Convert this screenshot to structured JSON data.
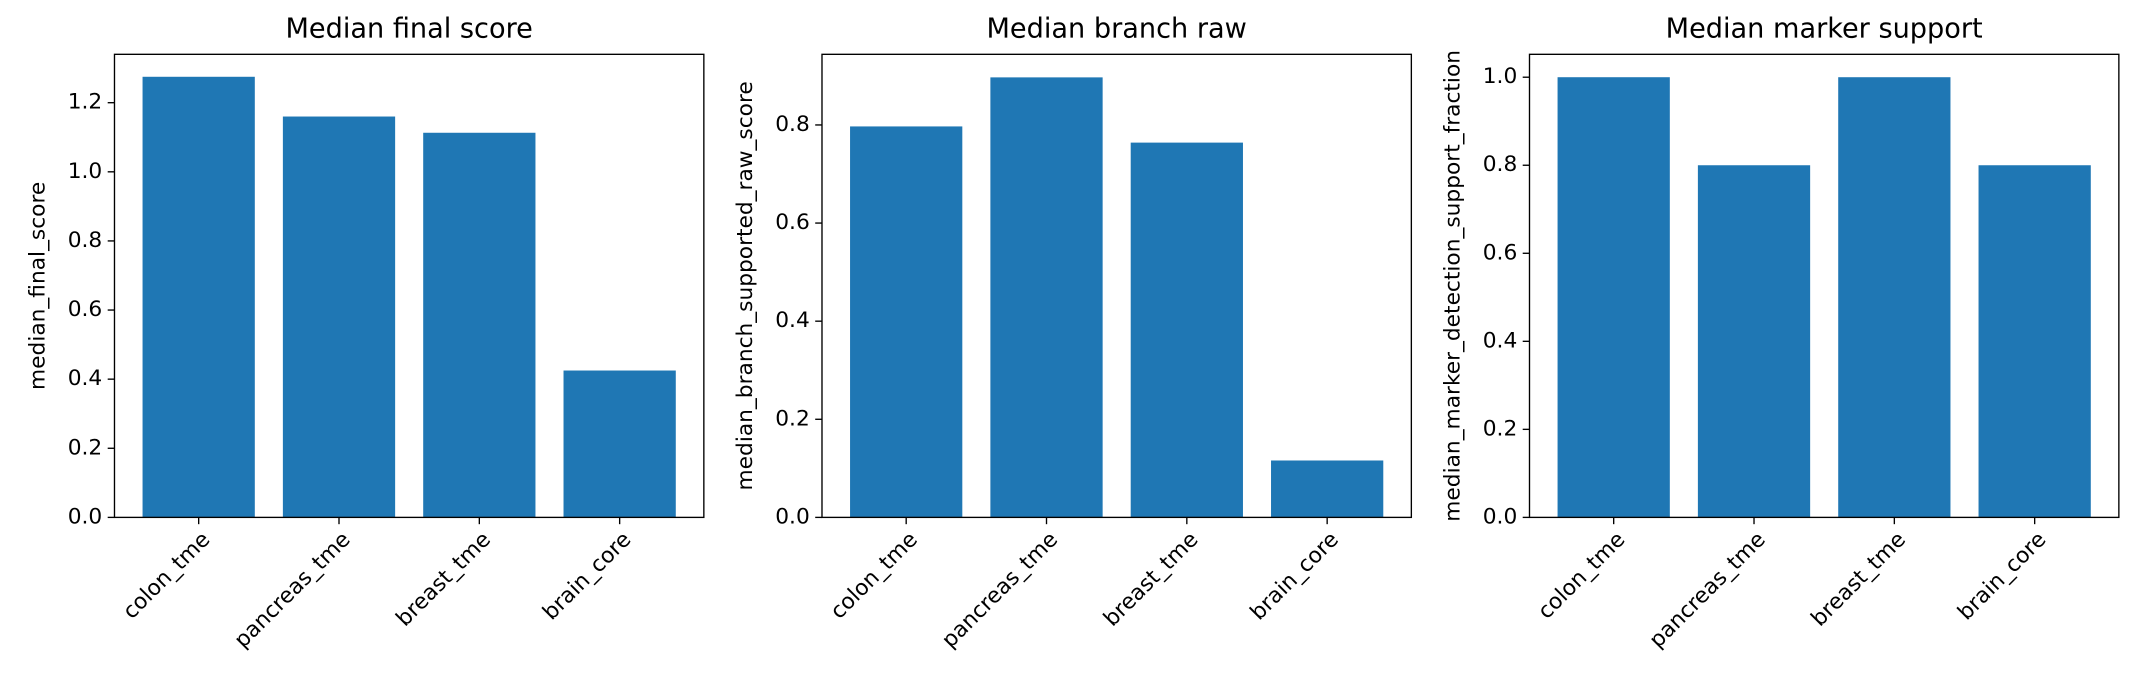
{
  "chart_data": [
    {
      "type": "bar",
      "title": "Median final score",
      "y_label": "median_final_score",
      "categories": [
        "colon_tme",
        "pancreas_tme",
        "breast_tme",
        "brain_core"
      ],
      "values": [
        1.275,
        1.16,
        1.113,
        0.425
      ],
      "color": "#1f77b4",
      "ylim": [
        0,
        1.34
      ],
      "yticks": [
        {
          "value": 0,
          "label": "0.0"
        },
        {
          "value": 0.2,
          "label": "0.2"
        },
        {
          "value": 0.4,
          "label": "0.4"
        },
        {
          "value": 0.6,
          "label": "0.6"
        },
        {
          "value": 0.8,
          "label": "0.8"
        },
        {
          "value": 1.0,
          "label": "1.0"
        },
        {
          "value": 1.2,
          "label": "1.2"
        }
      ]
    },
    {
      "type": "bar",
      "title": "Median branch raw",
      "y_label": "median_branch_supported_raw_score",
      "categories": [
        "colon_tme",
        "pancreas_tme",
        "breast_tme",
        "brain_core"
      ],
      "values": [
        0.797,
        0.897,
        0.764,
        0.116
      ],
      "color": "#1f77b4",
      "ylim": [
        0,
        0.944
      ],
      "yticks": [
        {
          "value": 0,
          "label": "0.0"
        },
        {
          "value": 0.2,
          "label": "0.2"
        },
        {
          "value": 0.4,
          "label": "0.4"
        },
        {
          "value": 0.6,
          "label": "0.6"
        },
        {
          "value": 0.8,
          "label": "0.8"
        }
      ]
    },
    {
      "type": "bar",
      "title": "Median marker support",
      "y_label": "median_marker_detection_support_fraction",
      "categories": [
        "colon_tme",
        "pancreas_tme",
        "breast_tme",
        "brain_core"
      ],
      "values": [
        1.0,
        0.8,
        1.0,
        0.8
      ],
      "color": "#1f77b4",
      "ylim": [
        0,
        1.052
      ],
      "yticks": [
        {
          "value": 0,
          "label": "0.0"
        },
        {
          "value": 0.2,
          "label": "0.2"
        },
        {
          "value": 0.4,
          "label": "0.4"
        },
        {
          "value": 0.6,
          "label": "0.6"
        },
        {
          "value": 0.8,
          "label": "0.8"
        },
        {
          "value": 1.0,
          "label": "1.0"
        }
      ]
    }
  ]
}
